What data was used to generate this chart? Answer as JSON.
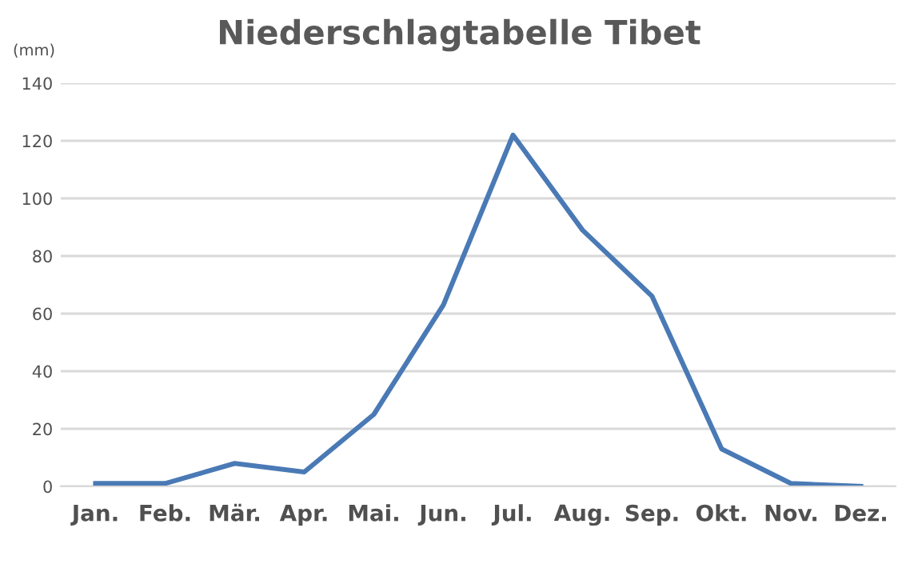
{
  "chart_data": {
    "type": "line",
    "title": "Niederschlagtabelle Tibet",
    "ylabel": "(mm)",
    "categories": [
      "Jan.",
      "Feb.",
      "Mär.",
      "Apr.",
      "Mai.",
      "Jun.",
      "Jul.",
      "Aug.",
      "Sep.",
      "Okt.",
      "Nov.",
      "Dez."
    ],
    "series": [
      {
        "color": "#4a7ab5",
        "values": [
          1,
          1,
          8,
          5,
          25,
          63,
          122,
          89,
          66,
          13,
          1,
          0
        ]
      }
    ],
    "ylim": [
      0,
      140
    ],
    "yticks": [
      0,
      20,
      40,
      60,
      80,
      100,
      120,
      140
    ],
    "grid": "y",
    "marker": "none",
    "line_style": "solid"
  }
}
